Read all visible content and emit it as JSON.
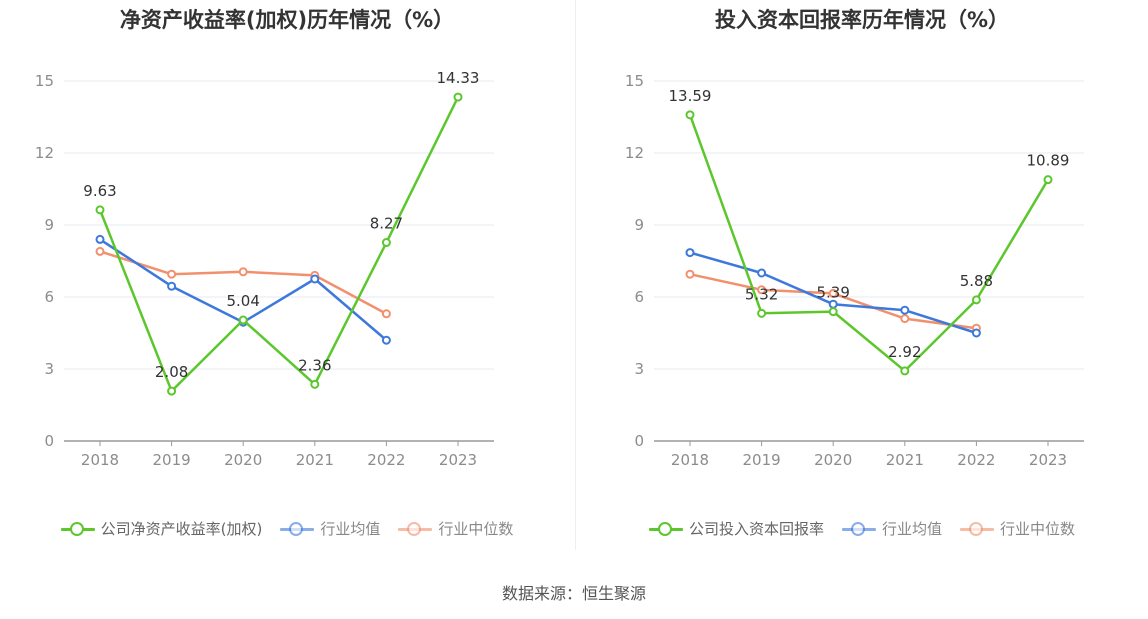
{
  "source": "数据来源：恒生聚源",
  "colors": {
    "company": "#5cc72d",
    "avg": "#3d78db",
    "median": "#f2906e",
    "grid": "#e6e9f0",
    "axis": "#999999",
    "tick_text": "#8c8c8c",
    "label_text": "#333333"
  },
  "chart_data": [
    {
      "type": "line",
      "title": "净资产收益率(加权)历年情况（%）",
      "categories": [
        "2018",
        "2019",
        "2020",
        "2021",
        "2022",
        "2023"
      ],
      "ylim": [
        0,
        15
      ],
      "yticks": [
        0,
        3,
        6,
        9,
        12,
        15
      ],
      "grid": true,
      "legend_position": "bottom",
      "series": [
        {
          "name": "公司净资产收益率(加权)",
          "key": "company",
          "values": [
            9.63,
            2.08,
            5.04,
            2.36,
            8.27,
            14.33
          ],
          "labels": [
            "9.63",
            "2.08",
            "5.04",
            "2.36",
            "8.27",
            "14.33"
          ]
        },
        {
          "name": "行业均值",
          "key": "avg",
          "values": [
            8.4,
            6.45,
            4.95,
            6.75,
            4.2,
            null
          ]
        },
        {
          "name": "行业中位数",
          "key": "median",
          "values": [
            7.9,
            6.95,
            7.05,
            6.9,
            5.3,
            null
          ]
        }
      ]
    },
    {
      "type": "line",
      "title": "投入资本回报率历年情况（%）",
      "categories": [
        "2018",
        "2019",
        "2020",
        "2021",
        "2022",
        "2023"
      ],
      "ylim": [
        0,
        15
      ],
      "yticks": [
        0,
        3,
        6,
        9,
        12,
        15
      ],
      "grid": true,
      "legend_position": "bottom",
      "series": [
        {
          "name": "公司投入资本回报率",
          "key": "company",
          "values": [
            13.59,
            5.32,
            5.39,
            2.92,
            5.88,
            10.89
          ],
          "labels": [
            "13.59",
            "5.32",
            "5.39",
            "2.92",
            "5.88",
            "10.89"
          ]
        },
        {
          "name": "行业均值",
          "key": "avg",
          "values": [
            7.85,
            7.0,
            5.7,
            5.45,
            4.5,
            null
          ]
        },
        {
          "name": "行业中位数",
          "key": "median",
          "values": [
            6.95,
            6.3,
            6.15,
            5.1,
            4.7,
            null
          ]
        }
      ]
    }
  ]
}
